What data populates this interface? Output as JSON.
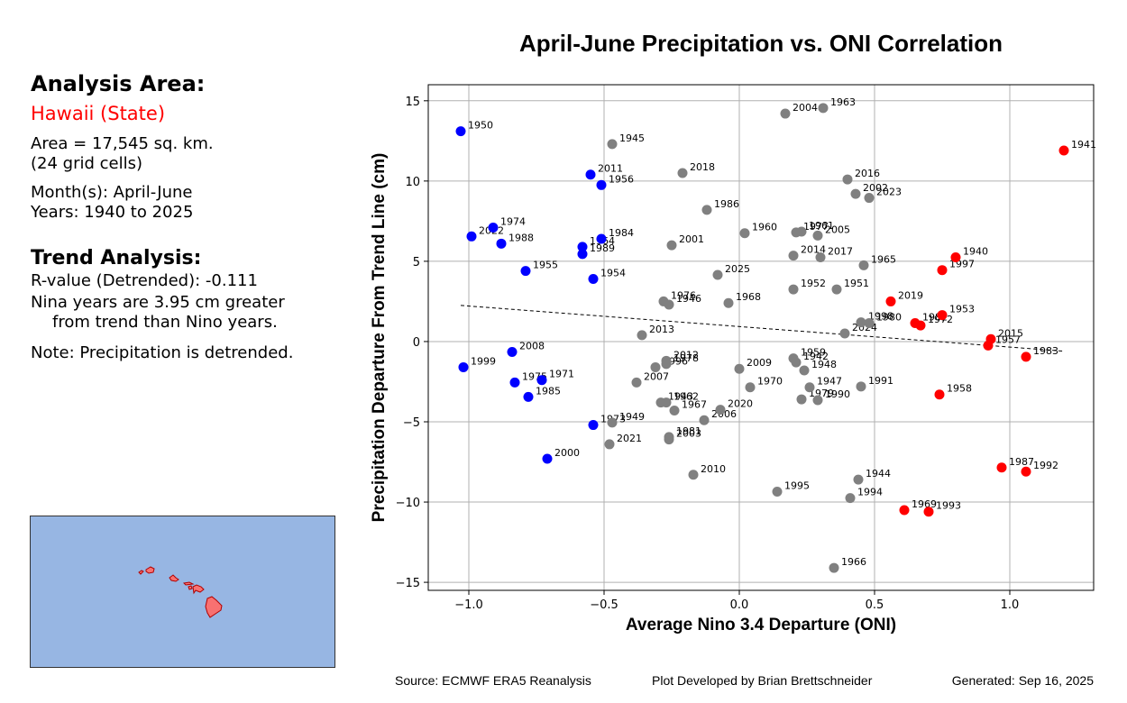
{
  "sidebar": {
    "area_heading": "Analysis Area:",
    "region": "Hawaii (State)",
    "area_line1": "Area = 17,545 sq. km.",
    "area_line2": "(24 grid cells)",
    "months": "Month(s): April-June",
    "years": "Years: 1940 to 2025",
    "trend_heading": "Trend Analysis:",
    "r_value": "R-value (Detrended): -0.111",
    "nina_line1": "Nina years are 3.95 cm greater",
    "nina_line2": "from trend than Nino years.",
    "note": "Note: Precipitation is detrended."
  },
  "footer": {
    "source": "Source: ECMWF ERA5 Reanalysis",
    "developer": "Plot Developed by Brian Brettschneider",
    "generated": "Generated: Sep 16, 2025"
  },
  "colors": {
    "nina": "#0000ff",
    "neutral": "#808080",
    "nino": "#ff0000",
    "map_ocean": "#97b6e3",
    "map_land": "#f87171"
  },
  "chart_data": {
    "type": "scatter",
    "title": "April-June Precipitation vs. ONI Correlation",
    "xlabel": "Average Nino 3.4 Departure (ONI)",
    "ylabel": "Precipitation Departure From Trend Line (cm)",
    "xlim": [
      -1.15,
      1.31
    ],
    "ylim": [
      -15.5,
      16
    ],
    "xticks": [
      -1.0,
      -0.5,
      0.0,
      0.5,
      1.0
    ],
    "xtick_labels": [
      "−1.0",
      "−0.5",
      "0.0",
      "0.5",
      "1.0"
    ],
    "yticks": [
      -15,
      -10,
      -5,
      0,
      5,
      10,
      15
    ],
    "ytick_labels": [
      "−15",
      "−10",
      "−5",
      "0",
      "5",
      "10",
      "15"
    ],
    "grid": true,
    "trend_line": {
      "x": [
        -1.03,
        1.2
      ],
      "y": [
        2.25,
        -0.6
      ]
    },
    "series": [
      {
        "category": "nina",
        "points": [
          {
            "year": "1950",
            "x": -1.03,
            "y": 13.1
          },
          {
            "year": "2011",
            "x": -0.55,
            "y": 10.4
          },
          {
            "year": "1956",
            "x": -0.51,
            "y": 9.75
          },
          {
            "year": "1974",
            "x": -0.91,
            "y": 7.1
          },
          {
            "year": "2022",
            "x": -0.99,
            "y": 6.55
          },
          {
            "year": "1988",
            "x": -0.88,
            "y": 6.1
          },
          {
            "year": "1984",
            "x": -0.51,
            "y": 6.4
          },
          {
            "year": "1964",
            "x": -0.58,
            "y": 5.9
          },
          {
            "year": "1989",
            "x": -0.58,
            "y": 5.45
          },
          {
            "year": "1955",
            "x": -0.79,
            "y": 4.4
          },
          {
            "year": "1954",
            "x": -0.54,
            "y": 3.9
          },
          {
            "year": "2008",
            "x": -0.84,
            "y": -0.65
          },
          {
            "year": "1999",
            "x": -1.02,
            "y": -1.6
          },
          {
            "year": "1975",
            "x": -0.83,
            "y": -2.55
          },
          {
            "year": "1971",
            "x": -0.73,
            "y": -2.4
          },
          {
            "year": "1985",
            "x": -0.78,
            "y": -3.45
          },
          {
            "year": "1973",
            "x": -0.54,
            "y": -5.2
          },
          {
            "year": "2000",
            "x": -0.71,
            "y": -7.3
          }
        ]
      },
      {
        "category": "neutral",
        "points": [
          {
            "year": "1945",
            "x": -0.47,
            "y": 12.3
          },
          {
            "year": "2018",
            "x": -0.21,
            "y": 10.5
          },
          {
            "year": "1986",
            "x": -0.12,
            "y": 8.2
          },
          {
            "year": "1960",
            "x": 0.02,
            "y": 6.75
          },
          {
            "year": "2001",
            "x": -0.25,
            "y": 6.0
          },
          {
            "year": "2025",
            "x": -0.08,
            "y": 4.15
          },
          {
            "year": "1976",
            "x": -0.28,
            "y": 2.5
          },
          {
            "year": "1946",
            "x": -0.26,
            "y": 2.3
          },
          {
            "year": "1968",
            "x": -0.04,
            "y": 2.4
          },
          {
            "year": "2013",
            "x": -0.36,
            "y": 0.4
          },
          {
            "year": "2012",
            "x": -0.27,
            "y": -1.2
          },
          {
            "year": "1978",
            "x": -0.27,
            "y": -1.4
          },
          {
            "year": "1996",
            "x": -0.31,
            "y": -1.6
          },
          {
            "year": "2007",
            "x": -0.38,
            "y": -2.55
          },
          {
            "year": "1943",
            "x": -0.29,
            "y": -3.8
          },
          {
            "year": "1962",
            "x": -0.27,
            "y": -3.8
          },
          {
            "year": "1967",
            "x": -0.24,
            "y": -4.3
          },
          {
            "year": "1949",
            "x": -0.47,
            "y": -5.05
          },
          {
            "year": "2006",
            "x": -0.13,
            "y": -4.9
          },
          {
            "year": "2020",
            "x": -0.07,
            "y": -4.25
          },
          {
            "year": "1981",
            "x": -0.26,
            "y": -5.95
          },
          {
            "year": "2003",
            "x": -0.26,
            "y": -6.1
          },
          {
            "year": "2021",
            "x": -0.48,
            "y": -6.4
          },
          {
            "year": "2010",
            "x": -0.17,
            "y": -8.3
          },
          {
            "year": "2009",
            "x": 0.0,
            "y": -1.7
          },
          {
            "year": "1970",
            "x": 0.04,
            "y": -2.85
          },
          {
            "year": "2004",
            "x": 0.17,
            "y": 14.2
          },
          {
            "year": "1963",
            "x": 0.31,
            "y": 14.55
          },
          {
            "year": "2016",
            "x": 0.4,
            "y": 10.1
          },
          {
            "year": "2002",
            "x": 0.43,
            "y": 9.2
          },
          {
            "year": "2023",
            "x": 0.48,
            "y": 8.95
          },
          {
            "year": "1977",
            "x": 0.21,
            "y": 6.8
          },
          {
            "year": "1961",
            "x": 0.23,
            "y": 6.85
          },
          {
            "year": "2005",
            "x": 0.29,
            "y": 6.6
          },
          {
            "year": "2014",
            "x": 0.2,
            "y": 5.35
          },
          {
            "year": "2017",
            "x": 0.3,
            "y": 5.25
          },
          {
            "year": "1965",
            "x": 0.46,
            "y": 4.75
          },
          {
            "year": "1952",
            "x": 0.2,
            "y": 3.25
          },
          {
            "year": "1951",
            "x": 0.36,
            "y": 3.25
          },
          {
            "year": "1998",
            "x": 0.45,
            "y": 1.2
          },
          {
            "year": "1980",
            "x": 0.48,
            "y": 1.15
          },
          {
            "year": "2024",
            "x": 0.39,
            "y": 0.5
          },
          {
            "year": "1959",
            "x": 0.2,
            "y": -1.05
          },
          {
            "year": "1942",
            "x": 0.21,
            "y": -1.3
          },
          {
            "year": "1948",
            "x": 0.24,
            "y": -1.8
          },
          {
            "year": "1947",
            "x": 0.26,
            "y": -2.85
          },
          {
            "year": "1979",
            "x": 0.23,
            "y": -3.6
          },
          {
            "year": "1990",
            "x": 0.29,
            "y": -3.65
          },
          {
            "year": "1991",
            "x": 0.45,
            "y": -2.8
          },
          {
            "year": "1944",
            "x": 0.44,
            "y": -8.6
          },
          {
            "year": "1995",
            "x": 0.14,
            "y": -9.35
          },
          {
            "year": "1994",
            "x": 0.41,
            "y": -9.75
          },
          {
            "year": "1966",
            "x": 0.35,
            "y": -14.1
          }
        ]
      },
      {
        "category": "nino",
        "points": [
          {
            "year": "1941",
            "x": 1.2,
            "y": 11.9
          },
          {
            "year": "1940",
            "x": 0.8,
            "y": 5.25
          },
          {
            "year": "1997",
            "x": 0.75,
            "y": 4.45
          },
          {
            "year": "2019",
            "x": 0.56,
            "y": 2.5
          },
          {
            "year": "1953",
            "x": 0.75,
            "y": 1.65
          },
          {
            "year": "1982",
            "x": 0.65,
            "y": 1.15
          },
          {
            "year": "1972",
            "x": 0.67,
            "y": 1.0
          },
          {
            "year": "2015",
            "x": 0.93,
            "y": 0.15
          },
          {
            "year": "1957",
            "x": 0.92,
            "y": -0.25
          },
          {
            "year": "1983",
            "x": 1.06,
            "y": -0.95
          },
          {
            "year": "1958",
            "x": 0.74,
            "y": -3.3
          },
          {
            "year": "1987",
            "x": 0.97,
            "y": -7.85
          },
          {
            "year": "1992",
            "x": 1.06,
            "y": -8.1
          },
          {
            "year": "1969",
            "x": 0.61,
            "y": -10.5
          },
          {
            "year": "1993",
            "x": 0.7,
            "y": -10.6
          }
        ]
      }
    ]
  }
}
